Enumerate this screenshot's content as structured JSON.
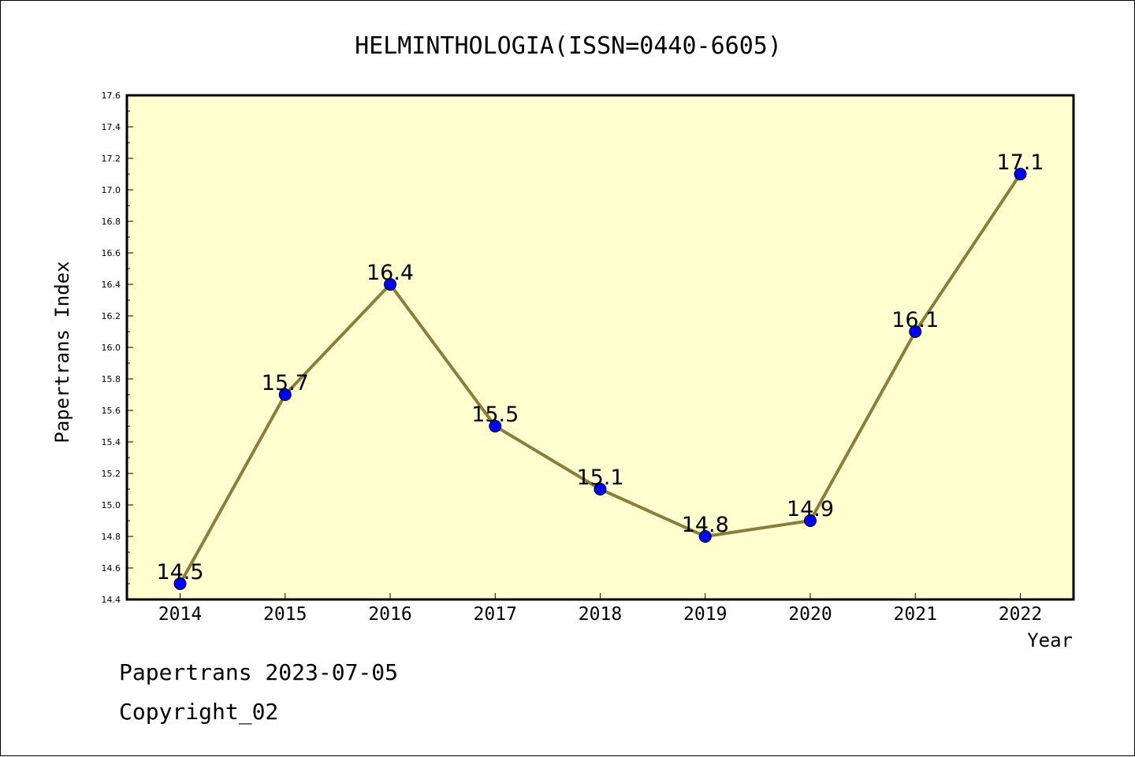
{
  "chart_data": {
    "type": "line",
    "title": "HELMINTHOLOGIA(ISSN=0440-6605)",
    "xlabel": "Year",
    "ylabel": "Papertrans Index",
    "categories": [
      "2014",
      "2015",
      "2016",
      "2017",
      "2018",
      "2019",
      "2020",
      "2021",
      "2022"
    ],
    "values": [
      14.5,
      15.7,
      16.4,
      15.5,
      15.1,
      14.8,
      14.9,
      16.1,
      17.1
    ],
    "data_labels": [
      "14.5",
      "15.7",
      "16.4",
      "15.5",
      "15.1",
      "14.8",
      "14.9",
      "16.1",
      "17.1"
    ],
    "ylim": [
      14.4,
      17.6
    ],
    "yticks": [
      "14.4",
      "14.6",
      "14.8",
      "15.0",
      "15.2",
      "15.4",
      "15.6",
      "15.8",
      "16.0",
      "16.2",
      "16.4",
      "16.6",
      "16.8",
      "17.0",
      "17.2",
      "17.4",
      "17.6"
    ],
    "grid": false,
    "legend": "none",
    "colors": {
      "plot_background": "#ffffd0",
      "line": "#8b7d3a",
      "marker": "#0000ff",
      "axis": "#000000"
    }
  },
  "footer": {
    "source": "Papertrans 2023-07-05",
    "copyright": "Copyright_02"
  }
}
